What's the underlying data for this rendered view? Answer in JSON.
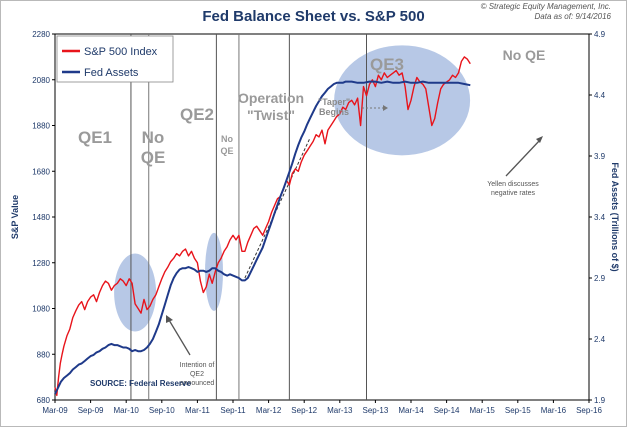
{
  "header": {
    "title": "Fed Balance Sheet vs. S&P 500",
    "credit_line1": "© Strategic Equity Management, Inc.",
    "credit_line2": "Data as of: 9/14/2016"
  },
  "chart_data": {
    "type": "line",
    "title": "Fed Balance Sheet vs. S&P 500",
    "x_tick_labels": [
      "Mar-09",
      "Sep-09",
      "Mar-10",
      "Sep-10",
      "Mar-11",
      "Sep-11",
      "Mar-12",
      "Sep-12",
      "Mar-13",
      "Sep-13",
      "Mar-14",
      "Sep-14",
      "Mar-15",
      "Sep-15",
      "Mar-16",
      "Sep-16"
    ],
    "y_left": {
      "label": "S&P Value",
      "ticks": [
        680,
        880,
        1080,
        1280,
        1480,
        1680,
        1880,
        2080,
        2280
      ],
      "range": [
        680,
        2280
      ]
    },
    "y_right": {
      "label": "Fed Assets (Trillions of $)",
      "ticks": [
        1.9,
        2.4,
        2.9,
        3.4,
        3.9,
        4.4,
        4.9
      ],
      "range": [
        1.9,
        4.9
      ]
    },
    "grid": false,
    "legend_position": "top-left",
    "series": [
      {
        "name": "S&P 500 Index",
        "axis": "left",
        "color": "#e8141b",
        "points": [
          [
            0,
            735
          ],
          [
            0.3,
            700
          ],
          [
            0.6,
            780
          ],
          [
            0.9,
            840
          ],
          [
            1.2,
            880
          ],
          [
            1.5,
            915
          ],
          [
            2,
            960
          ],
          [
            2.5,
            990
          ],
          [
            3,
            1040
          ],
          [
            3.5,
            1070
          ],
          [
            4,
            1095
          ],
          [
            4.5,
            1110
          ],
          [
            5,
            1075
          ],
          [
            5.5,
            1110
          ],
          [
            6,
            1130
          ],
          [
            6.5,
            1140
          ],
          [
            7,
            1110
          ],
          [
            7.5,
            1150
          ],
          [
            8,
            1180
          ],
          [
            8.5,
            1200
          ],
          [
            9,
            1190
          ],
          [
            9.5,
            1160
          ],
          [
            10,
            1180
          ],
          [
            10.5,
            1190
          ],
          [
            11,
            1210
          ],
          [
            11.5,
            1200
          ],
          [
            12,
            1180
          ],
          [
            12.5,
            1210
          ],
          [
            13,
            1190
          ],
          [
            13.5,
            1100
          ],
          [
            14,
            1080
          ],
          [
            14.5,
            1060
          ],
          [
            15,
            1120
          ],
          [
            15.5,
            1075
          ],
          [
            16,
            1090
          ],
          [
            16.5,
            1120
          ],
          [
            17,
            1140
          ],
          [
            17.5,
            1175
          ],
          [
            18,
            1210
          ],
          [
            18.5,
            1240
          ],
          [
            19,
            1260
          ],
          [
            19.5,
            1285
          ],
          [
            20,
            1300
          ],
          [
            20.5,
            1320
          ],
          [
            21,
            1310
          ],
          [
            21.5,
            1330
          ],
          [
            22,
            1340
          ],
          [
            22.5,
            1310
          ],
          [
            23,
            1330
          ],
          [
            23.5,
            1300
          ],
          [
            24,
            1280
          ],
          [
            24.5,
            1200
          ],
          [
            25,
            1150
          ],
          [
            25.5,
            1175
          ],
          [
            26,
            1230
          ],
          [
            26.5,
            1190
          ],
          [
            27,
            1240
          ],
          [
            27.5,
            1280
          ],
          [
            28,
            1300
          ],
          [
            28.5,
            1330
          ],
          [
            29,
            1350
          ],
          [
            29.5,
            1380
          ],
          [
            30,
            1400
          ],
          [
            30.5,
            1380
          ],
          [
            31,
            1400
          ],
          [
            31.5,
            1330
          ],
          [
            32,
            1330
          ],
          [
            32.5,
            1370
          ],
          [
            33,
            1400
          ],
          [
            33.5,
            1430
          ],
          [
            34,
            1440
          ],
          [
            34.5,
            1420
          ],
          [
            35,
            1400
          ],
          [
            35.5,
            1430
          ],
          [
            36,
            1460
          ],
          [
            36.5,
            1500
          ],
          [
            37,
            1530
          ],
          [
            37.5,
            1560
          ],
          [
            38,
            1570
          ],
          [
            38.5,
            1600
          ],
          [
            39,
            1640
          ],
          [
            39.5,
            1620
          ],
          [
            40,
            1670
          ],
          [
            40.5,
            1690
          ],
          [
            41,
            1680
          ],
          [
            41.5,
            1720
          ],
          [
            42,
            1750
          ],
          [
            42.5,
            1770
          ],
          [
            43,
            1790
          ],
          [
            43.5,
            1810
          ],
          [
            44,
            1840
          ],
          [
            44.5,
            1830
          ],
          [
            45,
            1860
          ],
          [
            45.5,
            1800
          ],
          [
            46,
            1860
          ],
          [
            46.5,
            1880
          ],
          [
            47,
            1900
          ],
          [
            47.5,
            1920
          ],
          [
            48,
            1930
          ],
          [
            48.5,
            1960
          ],
          [
            49,
            1950
          ],
          [
            49.5,
            1980
          ],
          [
            50,
            1990
          ],
          [
            50.5,
            1970
          ],
          [
            51,
            2000
          ],
          [
            51.5,
            1880
          ],
          [
            52,
            2050
          ],
          [
            52.5,
            2010
          ],
          [
            53,
            2060
          ],
          [
            53.5,
            2080
          ],
          [
            54,
            2050
          ],
          [
            54.5,
            2100
          ],
          [
            55,
            2080
          ],
          [
            55.5,
            2110
          ],
          [
            56,
            2090
          ],
          [
            56.5,
            2100
          ],
          [
            57,
            2110
          ],
          [
            57.5,
            2120
          ],
          [
            58,
            2100
          ],
          [
            58.5,
            2110
          ],
          [
            59,
            2050
          ],
          [
            59.5,
            1950
          ],
          [
            60,
            1990
          ],
          [
            60.5,
            2050
          ],
          [
            61,
            2090
          ],
          [
            61.5,
            2070
          ],
          [
            62,
            2060
          ],
          [
            62.5,
            2040
          ],
          [
            63,
            1960
          ],
          [
            63.5,
            1880
          ],
          [
            64,
            1910
          ],
          [
            64.5,
            1980
          ],
          [
            65,
            2040
          ],
          [
            65.5,
            2060
          ],
          [
            66,
            2070
          ],
          [
            66.5,
            2080
          ],
          [
            67,
            2100
          ],
          [
            67.5,
            2090
          ],
          [
            68,
            2110
          ],
          [
            68.5,
            2160
          ],
          [
            69,
            2180
          ],
          [
            69.5,
            2170
          ],
          [
            70,
            2150
          ]
        ]
      },
      {
        "name": "Fed Assets",
        "axis": "right",
        "color": "#1f3a8a",
        "points": [
          [
            0,
            1.95
          ],
          [
            0.5,
            2.0
          ],
          [
            1,
            2.05
          ],
          [
            1.5,
            2.08
          ],
          [
            2,
            2.1
          ],
          [
            2.5,
            2.12
          ],
          [
            3,
            2.15
          ],
          [
            3.5,
            2.17
          ],
          [
            4,
            2.19
          ],
          [
            4.5,
            2.2
          ],
          [
            5,
            2.22
          ],
          [
            5.5,
            2.24
          ],
          [
            6,
            2.26
          ],
          [
            6.5,
            2.27
          ],
          [
            7,
            2.29
          ],
          [
            7.5,
            2.3
          ],
          [
            8,
            2.32
          ],
          [
            8.5,
            2.33
          ],
          [
            9,
            2.35
          ],
          [
            9.5,
            2.36
          ],
          [
            10,
            2.35
          ],
          [
            10.5,
            2.35
          ],
          [
            11,
            2.34
          ],
          [
            11.5,
            2.33
          ],
          [
            12,
            2.33
          ],
          [
            12.5,
            2.32
          ],
          [
            13,
            2.3
          ],
          [
            13.5,
            2.31
          ],
          [
            14,
            2.3
          ],
          [
            14.5,
            2.3
          ],
          [
            15,
            2.31
          ],
          [
            15.5,
            2.33
          ],
          [
            16,
            2.36
          ],
          [
            16.5,
            2.4
          ],
          [
            17,
            2.46
          ],
          [
            17.5,
            2.52
          ],
          [
            18,
            2.6
          ],
          [
            18.5,
            2.68
          ],
          [
            19,
            2.76
          ],
          [
            19.5,
            2.84
          ],
          [
            20,
            2.9
          ],
          [
            20.5,
            2.94
          ],
          [
            21,
            2.97
          ],
          [
            21.5,
            2.98
          ],
          [
            22,
            2.98
          ],
          [
            22.5,
            2.99
          ],
          [
            23,
            2.98
          ],
          [
            23.5,
            2.97
          ],
          [
            24,
            2.95
          ],
          [
            24.5,
            2.96
          ],
          [
            25,
            2.96
          ],
          [
            25.5,
            2.95
          ],
          [
            26,
            2.96
          ],
          [
            26.5,
            2.98
          ],
          [
            27,
            2.98
          ],
          [
            27.5,
            2.96
          ],
          [
            28,
            2.95
          ],
          [
            28.5,
            2.93
          ],
          [
            29,
            2.92
          ],
          [
            29.5,
            2.93
          ],
          [
            30,
            2.92
          ],
          [
            30.5,
            2.91
          ],
          [
            31,
            2.9
          ],
          [
            31.5,
            2.88
          ],
          [
            32,
            2.88
          ],
          [
            32.5,
            2.9
          ],
          [
            33,
            2.95
          ],
          [
            33.5,
            3.0
          ],
          [
            34,
            3.05
          ],
          [
            34.5,
            3.1
          ],
          [
            35,
            3.15
          ],
          [
            35.5,
            3.22
          ],
          [
            36,
            3.29
          ],
          [
            36.5,
            3.36
          ],
          [
            37,
            3.43
          ],
          [
            37.5,
            3.5
          ],
          [
            38,
            3.57
          ],
          [
            38.5,
            3.63
          ],
          [
            39,
            3.7
          ],
          [
            39.5,
            3.77
          ],
          [
            40,
            3.84
          ],
          [
            40.5,
            3.92
          ],
          [
            41,
            3.99
          ],
          [
            41.5,
            4.05
          ],
          [
            42,
            4.1
          ],
          [
            42.5,
            4.16
          ],
          [
            43,
            4.21
          ],
          [
            43.5,
            4.26
          ],
          [
            44,
            4.31
          ],
          [
            44.5,
            4.35
          ],
          [
            45,
            4.39
          ],
          [
            45.5,
            4.42
          ],
          [
            46,
            4.45
          ],
          [
            46.5,
            4.47
          ],
          [
            47,
            4.49
          ],
          [
            47.5,
            4.5
          ],
          [
            48,
            4.5
          ],
          [
            48.5,
            4.5
          ],
          [
            49,
            4.51
          ],
          [
            49.5,
            4.51
          ],
          [
            50,
            4.51
          ],
          [
            51,
            4.5
          ],
          [
            52,
            4.5
          ],
          [
            53,
            4.51
          ],
          [
            54,
            4.51
          ],
          [
            55,
            4.5
          ],
          [
            56,
            4.51
          ],
          [
            57,
            4.5
          ],
          [
            58,
            4.5
          ],
          [
            59,
            4.51
          ],
          [
            60,
            4.5
          ],
          [
            61,
            4.5
          ],
          [
            62,
            4.51
          ],
          [
            63,
            4.5
          ],
          [
            64,
            4.5
          ],
          [
            65,
            4.5
          ],
          [
            66,
            4.5
          ],
          [
            67,
            4.5
          ],
          [
            68,
            4.5
          ],
          [
            69,
            4.49
          ],
          [
            70,
            4.48
          ]
        ]
      }
    ],
    "annotations": {
      "source": "SOURCE:  Federal Reserve",
      "period_labels": [
        {
          "text": "QE1",
          "lines": [
            "QE1"
          ]
        },
        {
          "text": "No QE",
          "lines": [
            "No",
            "QE"
          ]
        },
        {
          "text": "QE2",
          "lines": [
            "QE2"
          ]
        },
        {
          "text": "No QE",
          "lines": [
            "No",
            "QE"
          ]
        },
        {
          "text": "Operation \"Twist\"",
          "lines": [
            "Operation",
            "\"Twist\""
          ]
        },
        {
          "text": "QE3",
          "lines": [
            "QE3"
          ]
        },
        {
          "text": "No QE",
          "lines": [
            "No QE"
          ]
        }
      ],
      "taper": [
        "\"Taper\"",
        "Begins"
      ],
      "qe2_note": [
        "Intention of",
        "QE2",
        "announced"
      ],
      "yellen_note": [
        "Yellen discusses",
        "negative rates"
      ]
    }
  }
}
